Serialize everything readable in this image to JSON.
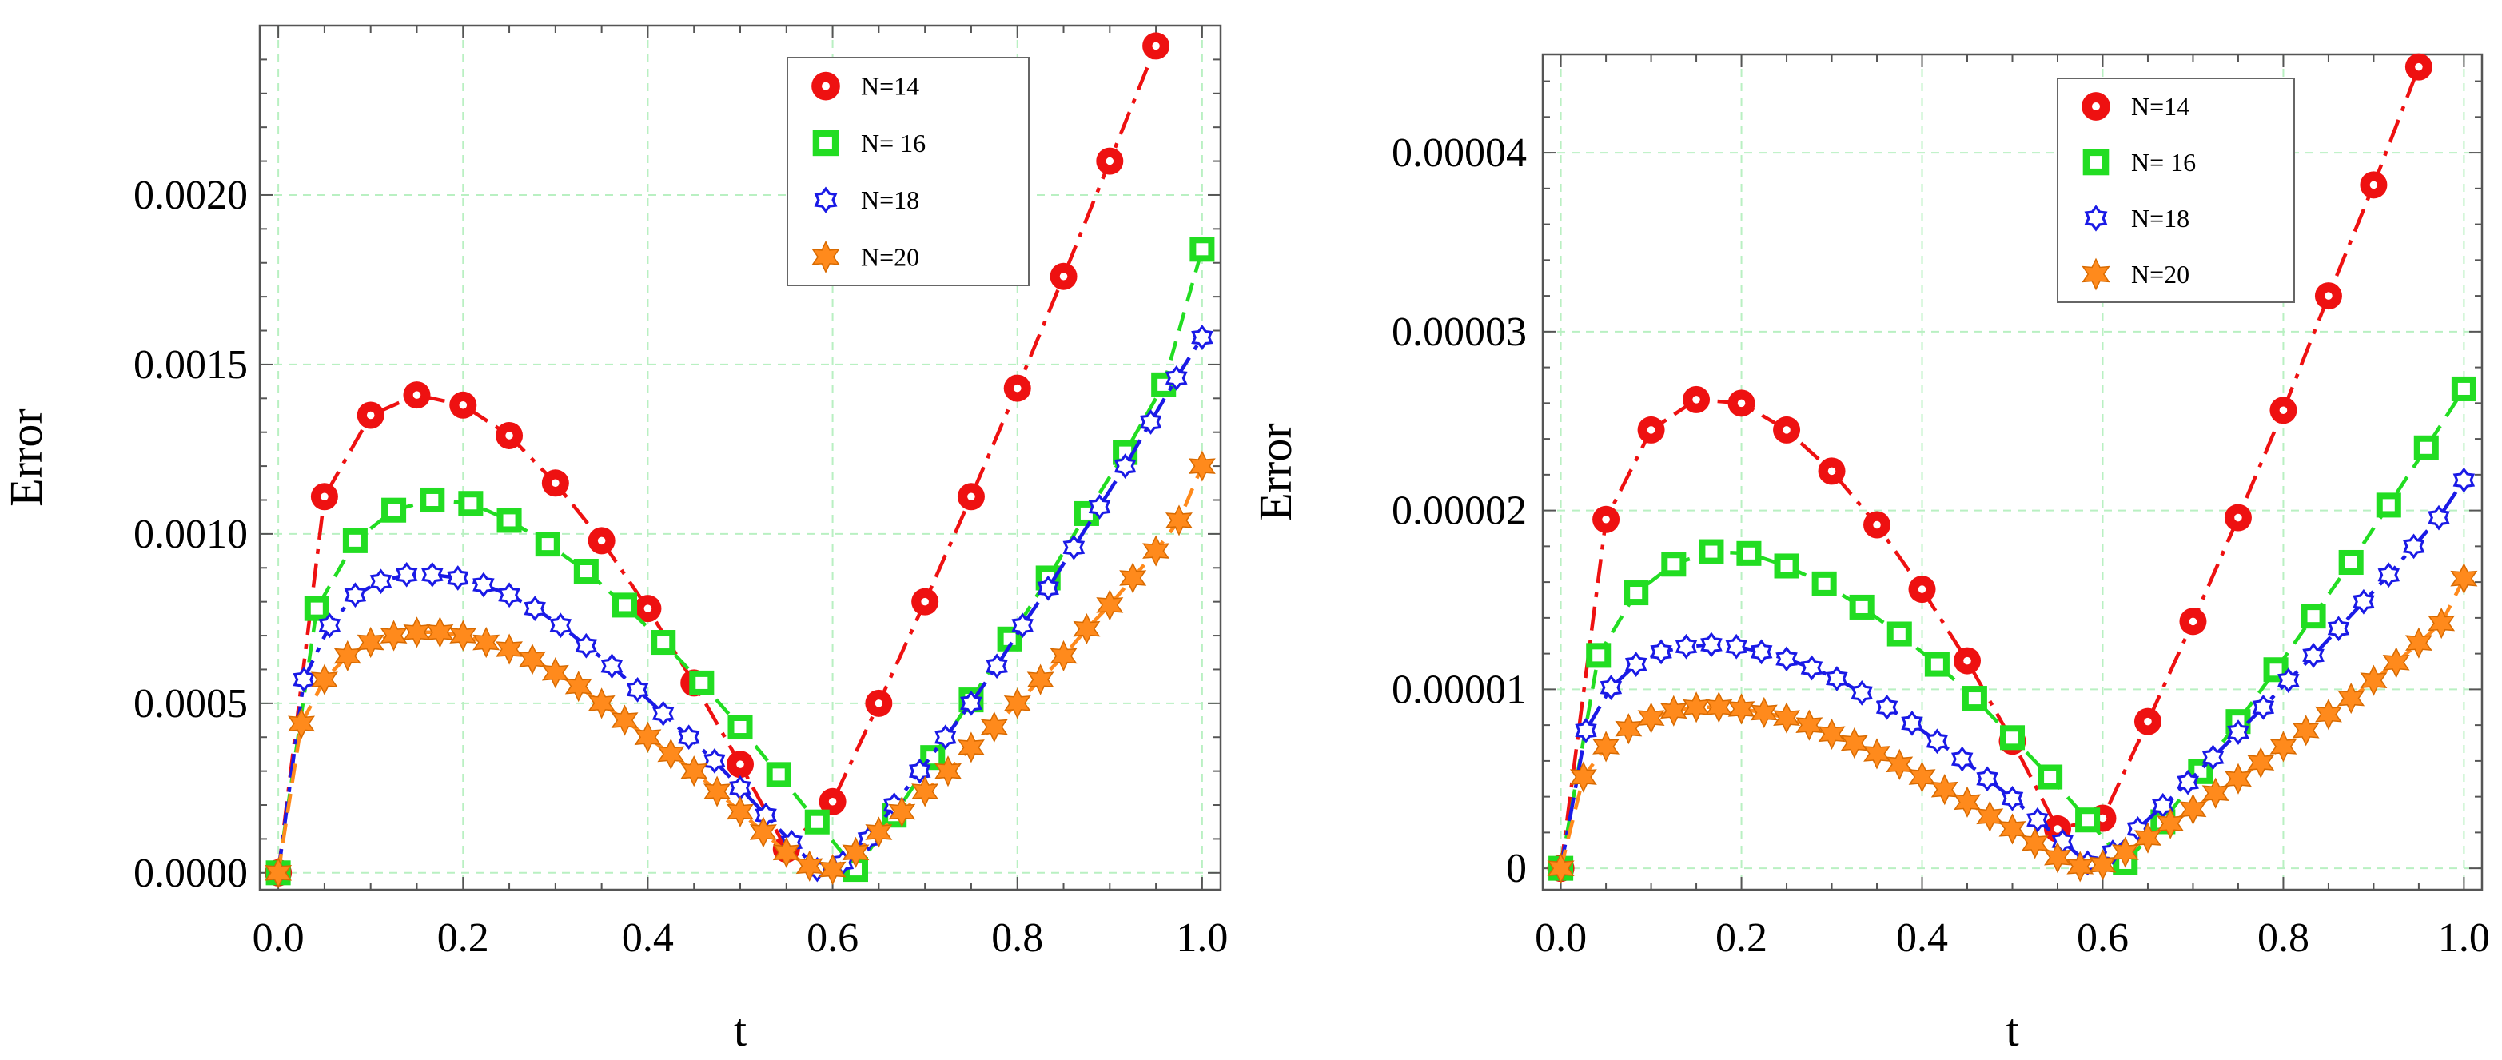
{
  "chart_data": [
    {
      "type": "line",
      "title": "",
      "xlabel": "t",
      "ylabel": "Error",
      "xlim": [
        -0.02,
        1.02
      ],
      "ylim": [
        -5e-05,
        0.0025
      ],
      "xticks": [
        0.0,
        0.2,
        0.4,
        0.6,
        0.8,
        1.0
      ],
      "xtick_labels": [
        "0.0",
        "0.2",
        "0.4",
        "0.6",
        "0.8",
        "1.0"
      ],
      "yticks": [
        0,
        0.0005,
        0.001,
        0.0015,
        0.002
      ],
      "ytick_labels": [
        "0.0000",
        "0.0005",
        "0.0010",
        "0.0015",
        "0.0020"
      ],
      "grid": true,
      "legend_position": "top-right",
      "series": [
        {
          "name": "N=14",
          "color": "#ee1111",
          "marker": "circle",
          "dash": "dashdot",
          "x": [
            0.0,
            0.05,
            0.1,
            0.15,
            0.2,
            0.25,
            0.3,
            0.35,
            0.4,
            0.45,
            0.5,
            0.55,
            0.6,
            0.65,
            0.7,
            0.75,
            0.8,
            0.85,
            0.9,
            0.95
          ],
          "y": [
            0,
            0.00111,
            0.00135,
            0.00141,
            0.00138,
            0.00129,
            0.00115,
            0.00098,
            0.00078,
            0.00056,
            0.00032,
            7e-05,
            0.00021,
            0.0005,
            0.0008,
            0.00111,
            0.00143,
            0.00176,
            0.0021,
            0.00244
          ]
        },
        {
          "name": "N= 16",
          "color": "#22dd22",
          "marker": "square",
          "dash": "dashed",
          "x": [
            0.0,
            0.0417,
            0.0833,
            0.125,
            0.1667,
            0.2083,
            0.25,
            0.2917,
            0.3333,
            0.375,
            0.4167,
            0.4583,
            0.5,
            0.5417,
            0.5833,
            0.625,
            0.6667,
            0.7083,
            0.75,
            0.7917,
            0.8333,
            0.875,
            0.9167,
            0.9583,
            1.0
          ],
          "y": [
            0,
            0.00078,
            0.00098,
            0.00107,
            0.0011,
            0.00109,
            0.00104,
            0.00097,
            0.00089,
            0.00079,
            0.00068,
            0.00056,
            0.00043,
            0.00029,
            0.00015,
            1e-05,
            0.00017,
            0.00034,
            0.00051,
            0.00069,
            0.00087,
            0.00106,
            0.00124,
            0.00144,
            0.00184
          ]
        },
        {
          "name": "N=18",
          "color": "#1a1ae6",
          "marker": "gear",
          "dash": "dashdot",
          "x": [
            0.0,
            0.0278,
            0.0556,
            0.0833,
            0.1111,
            0.1389,
            0.1667,
            0.1944,
            0.2222,
            0.25,
            0.2778,
            0.3056,
            0.3333,
            0.3611,
            0.3889,
            0.4167,
            0.4444,
            0.4722,
            0.5,
            0.5278,
            0.5556,
            0.5833,
            0.6111,
            0.6389,
            0.6667,
            0.6944,
            0.7222,
            0.75,
            0.7778,
            0.8056,
            0.8333,
            0.8611,
            0.8889,
            0.9167,
            0.9444,
            0.9722,
            1.0
          ],
          "y": [
            0,
            0.00057,
            0.00073,
            0.00082,
            0.00086,
            0.00088,
            0.00088,
            0.00087,
            0.00085,
            0.00082,
            0.00078,
            0.00073,
            0.00067,
            0.00061,
            0.00054,
            0.00047,
            0.0004,
            0.00033,
            0.00025,
            0.00017,
            9e-05,
            1e-05,
            3e-05,
            0.0001,
            0.0002,
            0.0003,
            0.0004,
            0.0005,
            0.00061,
            0.00073,
            0.00084,
            0.00096,
            0.00108,
            0.0012,
            0.00133,
            0.00146,
            0.00158
          ]
        },
        {
          "name": "N=20",
          "color": "#ff8a1c",
          "marker": "star",
          "dash": "dashed",
          "x": [
            0.0,
            0.025,
            0.05,
            0.075,
            0.1,
            0.125,
            0.15,
            0.175,
            0.2,
            0.225,
            0.25,
            0.275,
            0.3,
            0.325,
            0.35,
            0.375,
            0.4,
            0.425,
            0.45,
            0.475,
            0.5,
            0.525,
            0.55,
            0.575,
            0.6,
            0.625,
            0.65,
            0.675,
            0.7,
            0.725,
            0.75,
            0.775,
            0.8,
            0.825,
            0.85,
            0.875,
            0.9,
            0.925,
            0.95,
            0.975,
            1.0
          ],
          "y": [
            0,
            0.00044,
            0.00057,
            0.00064,
            0.00068,
            0.0007,
            0.00071,
            0.00071,
            0.0007,
            0.00068,
            0.00066,
            0.00063,
            0.00059,
            0.00055,
            0.0005,
            0.00045,
            0.0004,
            0.00035,
            0.0003,
            0.00024,
            0.00018,
            0.00012,
            6e-05,
            2e-05,
            1e-05,
            6e-05,
            0.00012,
            0.00018,
            0.00024,
            0.0003,
            0.00037,
            0.00043,
            0.0005,
            0.00057,
            0.00064,
            0.00072,
            0.00079,
            0.00087,
            0.00095,
            0.00104,
            0.0012
          ]
        }
      ]
    },
    {
      "type": "line",
      "title": "",
      "xlabel": "t",
      "ylabel": "Error",
      "xlim": [
        -0.02,
        1.02
      ],
      "ylim": [
        -1.2e-06,
        4.55e-05
      ],
      "xticks": [
        0.0,
        0.2,
        0.4,
        0.6,
        0.8,
        1.0
      ],
      "xtick_labels": [
        "0.0",
        "0.2",
        "0.4",
        "0.6",
        "0.8",
        "1.0"
      ],
      "yticks": [
        0,
        1e-05,
        2e-05,
        3e-05,
        4e-05
      ],
      "ytick_labels": [
        "0",
        "0.00001",
        "0.00002",
        "0.00003",
        "0.00004"
      ],
      "grid": true,
      "legend_position": "top-right",
      "series": [
        {
          "name": "N=14",
          "color": "#ee1111",
          "marker": "circle",
          "dash": "dashdot",
          "x": [
            0.0,
            0.05,
            0.1,
            0.15,
            0.2,
            0.25,
            0.3,
            0.35,
            0.4,
            0.45,
            0.5,
            0.55,
            0.6,
            0.65,
            0.7,
            0.75,
            0.8,
            0.85,
            0.9,
            0.95
          ],
          "y": [
            0,
            1.95e-05,
            2.45e-05,
            2.62e-05,
            2.6e-05,
            2.45e-05,
            2.22e-05,
            1.92e-05,
            1.56e-05,
            1.16e-05,
            7.1e-06,
            2.2e-06,
            2.8e-06,
            8.2e-06,
            1.38e-05,
            1.96e-05,
            2.56e-05,
            3.2e-05,
            3.82e-05,
            4.48e-05
          ]
        },
        {
          "name": "N= 16",
          "color": "#22dd22",
          "marker": "square",
          "dash": "dashed",
          "x": [
            0.0,
            0.0417,
            0.0833,
            0.125,
            0.1667,
            0.2083,
            0.25,
            0.2917,
            0.3333,
            0.375,
            0.4167,
            0.4583,
            0.5,
            0.5417,
            0.5833,
            0.625,
            0.6667,
            0.7083,
            0.75,
            0.7917,
            0.8333,
            0.875,
            0.9167,
            0.9583,
            1.0
          ],
          "y": [
            0,
            1.19e-05,
            1.54e-05,
            1.7e-05,
            1.77e-05,
            1.76e-05,
            1.69e-05,
            1.59e-05,
            1.46e-05,
            1.31e-05,
            1.14e-05,
            9.5e-06,
            7.3e-06,
            5.1e-06,
            2.7e-06,
            3e-07,
            2.6e-06,
            5.4e-06,
            8.2e-06,
            1.11e-05,
            1.41e-05,
            1.71e-05,
            2.03e-05,
            2.35e-05,
            2.68e-05
          ]
        },
        {
          "name": "N=18",
          "color": "#1a1ae6",
          "marker": "gear",
          "dash": "dashdot",
          "x": [
            0.0,
            0.0278,
            0.0556,
            0.0833,
            0.1111,
            0.1389,
            0.1667,
            0.1944,
            0.2222,
            0.25,
            0.2778,
            0.3056,
            0.3333,
            0.3611,
            0.3889,
            0.4167,
            0.4444,
            0.4722,
            0.5,
            0.5278,
            0.5556,
            0.5833,
            0.6111,
            0.6389,
            0.6667,
            0.6944,
            0.7222,
            0.75,
            0.7778,
            0.8056,
            0.8333,
            0.8611,
            0.8889,
            0.9167,
            0.9444,
            0.9722,
            1.0
          ],
          "y": [
            0,
            7.7e-06,
            1.01e-05,
            1.14e-05,
            1.21e-05,
            1.24e-05,
            1.25e-05,
            1.24e-05,
            1.21e-05,
            1.17e-05,
            1.12e-05,
            1.06e-05,
            9.8e-06,
            9e-06,
            8.1e-06,
            7.1e-06,
            6.1e-06,
            5e-06,
            3.9e-06,
            2.7e-06,
            1.5e-06,
            3e-07,
            9e-07,
            2.2e-06,
            3.5e-06,
            4.8e-06,
            6.2e-06,
            7.6e-06,
            9e-06,
            1.05e-05,
            1.19e-05,
            1.34e-05,
            1.49e-05,
            1.64e-05,
            1.8e-05,
            1.96e-05,
            2.17e-05
          ]
        },
        {
          "name": "N=20",
          "color": "#ff8a1c",
          "marker": "star",
          "dash": "dashed",
          "x": [
            0.0,
            0.025,
            0.05,
            0.075,
            0.1,
            0.125,
            0.15,
            0.175,
            0.2,
            0.225,
            0.25,
            0.275,
            0.3,
            0.325,
            0.35,
            0.375,
            0.4,
            0.425,
            0.45,
            0.475,
            0.5,
            0.525,
            0.55,
            0.575,
            0.6,
            0.625,
            0.65,
            0.675,
            0.7,
            0.725,
            0.75,
            0.775,
            0.8,
            0.825,
            0.85,
            0.875,
            0.9,
            0.925,
            0.95,
            0.975,
            1.0
          ],
          "y": [
            0,
            5.1e-06,
            6.8e-06,
            7.8e-06,
            8.4e-06,
            8.8e-06,
            9e-06,
            9e-06,
            8.9e-06,
            8.7e-06,
            8.4e-06,
            8e-06,
            7.5e-06,
            7e-06,
            6.4e-06,
            5.8e-06,
            5.1e-06,
            4.4e-06,
            3.7e-06,
            2.9e-06,
            2.2e-06,
            1.4e-06,
            6e-07,
            1e-07,
            2e-07,
            9e-07,
            1.7e-06,
            2.5e-06,
            3.3e-06,
            4.2e-06,
            5e-06,
            5.9e-06,
            6.8e-06,
            7.7e-06,
            8.6e-06,
            9.5e-06,
            1.05e-05,
            1.15e-05,
            1.26e-05,
            1.37e-05,
            1.62e-05
          ]
        }
      ]
    }
  ]
}
